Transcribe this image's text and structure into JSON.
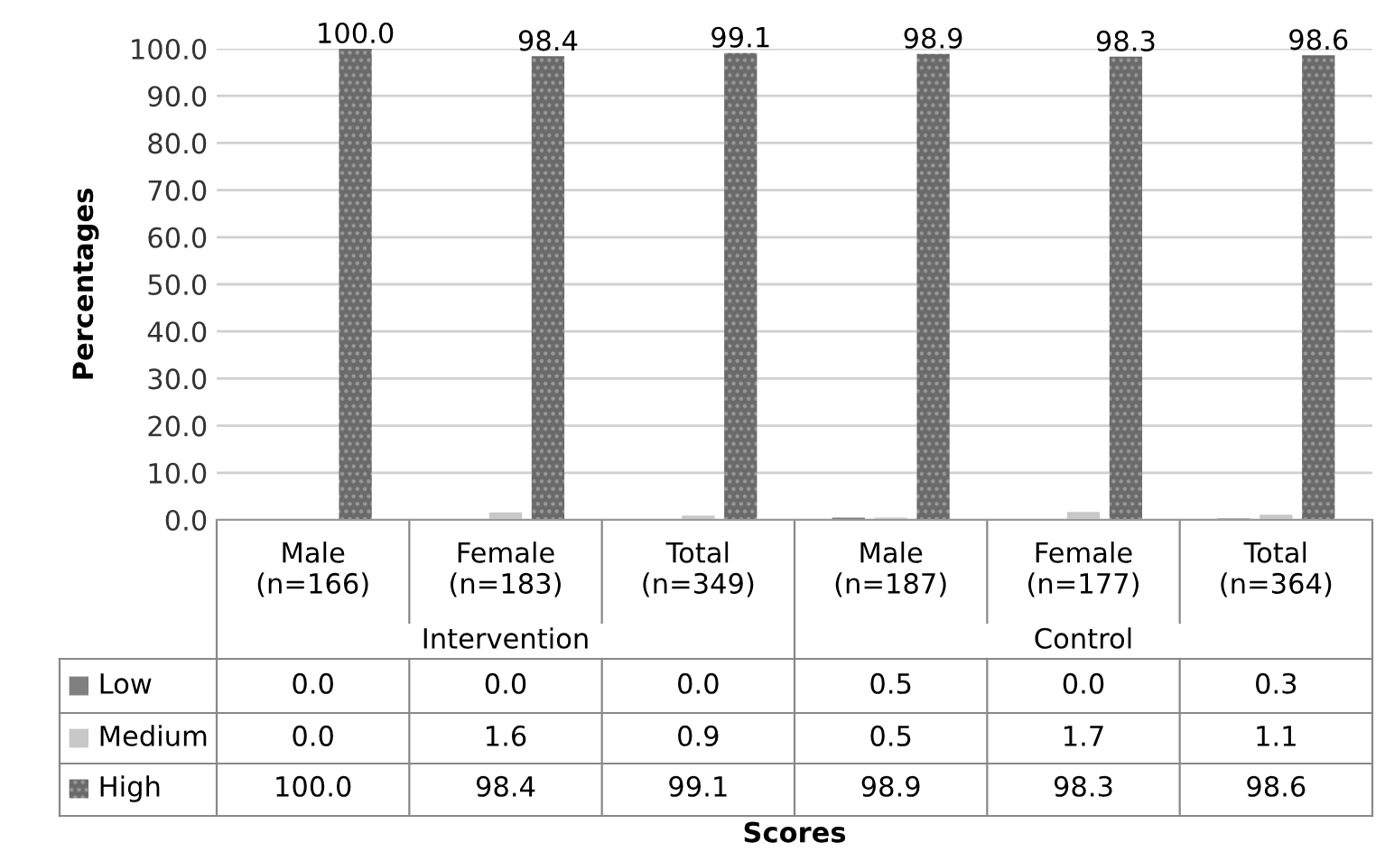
{
  "chart_data": {
    "type": "bar",
    "ylabel": "Percentages",
    "categories": [
      "Male\n(n=166)",
      "Female\n(n=183)",
      "Total\n(n=349)",
      "Male\n(n=187)",
      "Female\n(n=177)",
      "Total\n(n=364)"
    ],
    "annotations": [
      "Intervention",
      "Control",
      "Scores"
    ],
    "series": [
      {
        "name": "Low",
        "color": "#808080",
        "values": [
          0.0,
          0.0,
          0.0,
          0.5,
          0.0,
          0.3
        ],
        "value_labels": [
          "0.0",
          "0.0",
          "0.0",
          "0.5",
          "0.0",
          "0.3"
        ]
      },
      {
        "name": "Medium",
        "color": "#c8c8c8",
        "values": [
          0.0,
          1.6,
          0.9,
          0.5,
          1.7,
          1.1
        ],
        "value_labels": [
          "0.0",
          "1.6",
          "0.9",
          "0.5",
          "1.7",
          "1.1"
        ]
      },
      {
        "name": "High",
        "color": "#6a6a6a",
        "values": [
          100.0,
          98.4,
          99.1,
          98.9,
          98.3,
          98.6
        ],
        "value_labels": [
          "100.0",
          "98.4",
          "99.1",
          "98.9",
          "98.3",
          "98.6"
        ]
      }
    ],
    "ylim": [
      0,
      100
    ],
    "yticks": [
      {
        "value": 0,
        "label": "0.0"
      },
      {
        "value": 10,
        "label": "10.0"
      },
      {
        "value": 20,
        "label": "20.0"
      },
      {
        "value": 30,
        "label": "30.0"
      },
      {
        "value": 40,
        "label": "40.0"
      },
      {
        "value": 50,
        "label": "50.0"
      },
      {
        "value": 60,
        "label": "60.0"
      },
      {
        "value": 70,
        "label": "70.0"
      },
      {
        "value": 80,
        "label": "80.0"
      },
      {
        "value": 90,
        "label": "90.0"
      },
      {
        "value": 100,
        "label": "100.0"
      }
    ],
    "grid": "y",
    "legend": "bottom"
  }
}
